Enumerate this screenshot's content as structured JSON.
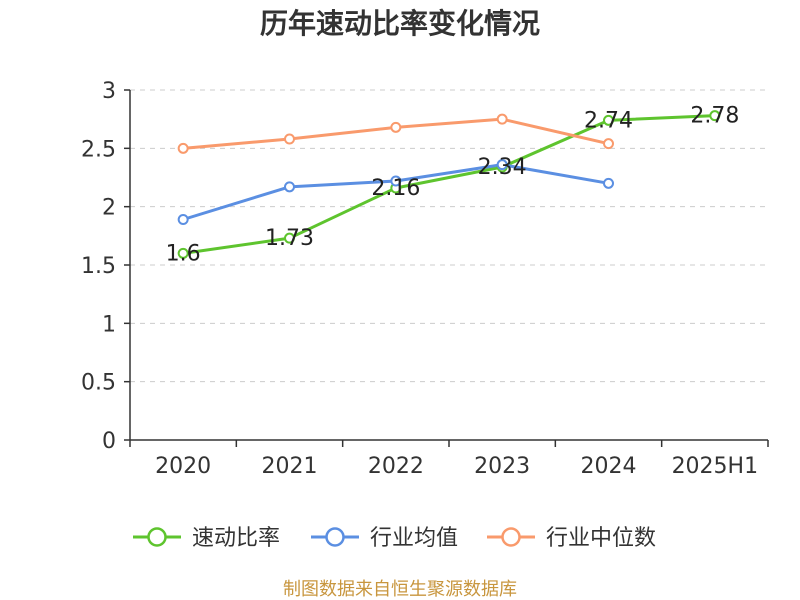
{
  "chart_data": {
    "type": "line",
    "title": "历年速动比率变化情况",
    "categories": [
      "2020",
      "2021",
      "2022",
      "2023",
      "2024",
      "2025H1"
    ],
    "series": [
      {
        "name": "速动比率",
        "color": "#5ec42e",
        "show_labels": true,
        "values": [
          1.6,
          1.73,
          2.16,
          2.34,
          2.74,
          2.78
        ]
      },
      {
        "name": "行业均值",
        "color": "#5b8fe2",
        "show_labels": false,
        "values": [
          1.89,
          2.17,
          2.22,
          2.36,
          2.2,
          null
        ]
      },
      {
        "name": "行业中位数",
        "color": "#f99a6c",
        "show_labels": false,
        "values": [
          2.5,
          2.58,
          2.68,
          2.75,
          2.54,
          null
        ]
      }
    ],
    "ylim": [
      0,
      3
    ],
    "yticks": [
      0,
      0.5,
      1,
      1.5,
      2,
      2.5,
      3
    ],
    "xlabel": "",
    "ylabel": "",
    "grid": true,
    "legend": "bottom"
  },
  "footer": {
    "source_note": "制图数据来自恒生聚源数据库",
    "color": "#c8963e"
  }
}
